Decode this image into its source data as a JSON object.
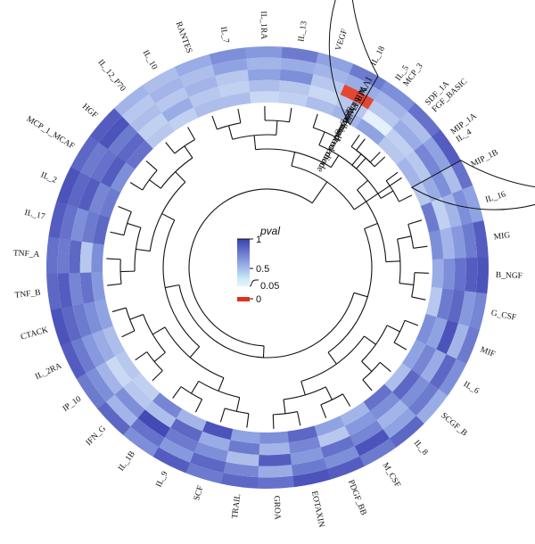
{
  "chart_data": {
    "type": "heatmap",
    "layout": "circular",
    "methods": [
      "IVW",
      "MR Egger",
      "Simple mode",
      "Weighted median",
      "Weighted mode"
    ],
    "cytokines": [
      "IL_5",
      "SDF_1A",
      "MIP_1A",
      "MIP_1B",
      "IL_16",
      "MIG",
      "B_NGF",
      "G_CSF",
      "MIF",
      "IL_6",
      "SCGF_B",
      "IL_8",
      "M_CSF",
      "PDGF_BB",
      "EOTAXIN",
      "GROA",
      "TRAIL",
      "SCF",
      "IL_9",
      "IL_1B",
      "IFN_G",
      "IP_10",
      "IL_2RA",
      "CTACK",
      "TNF_B",
      "TNF_A",
      "IL_17",
      "IL_2",
      "MCP_1_MCAF",
      "HGF",
      "IL_12_P70",
      "IL_10",
      "RANTES",
      "IL_7",
      "IL_1RA",
      "IL_13",
      "VEGF",
      "IL_18",
      "MCP_3",
      "FGF_BASIC",
      "IL_4"
    ],
    "pvals": [
      [
        0.7,
        0.3,
        0.5,
        0.6,
        0.4
      ],
      [
        0.8,
        0.25,
        0.7,
        0.5,
        0.6
      ],
      [
        0.6,
        0.4,
        0.3,
        0.7,
        0.5
      ],
      [
        0.75,
        0.35,
        0.6,
        0.45,
        0.3
      ],
      [
        0.5,
        0.6,
        0.4,
        0.25,
        0.7
      ],
      [
        0.85,
        0.7,
        0.55,
        0.4,
        0.6
      ],
      [
        0.9,
        0.85,
        0.75,
        0.6,
        0.45
      ],
      [
        0.65,
        0.55,
        0.8,
        0.7,
        0.3
      ],
      [
        0.7,
        0.4,
        0.9,
        0.5,
        0.6
      ],
      [
        0.6,
        0.8,
        0.45,
        0.65,
        0.5
      ],
      [
        0.45,
        0.7,
        0.6,
        0.8,
        0.35
      ],
      [
        0.8,
        0.5,
        0.4,
        0.6,
        0.75
      ],
      [
        0.7,
        0.9,
        0.65,
        0.55,
        0.4
      ],
      [
        0.85,
        0.6,
        0.75,
        0.3,
        0.5
      ],
      [
        0.9,
        0.7,
        0.55,
        0.65,
        0.8
      ],
      [
        0.75,
        0.45,
        0.85,
        0.4,
        0.6
      ],
      [
        0.8,
        0.65,
        0.35,
        0.7,
        0.5
      ],
      [
        0.7,
        0.8,
        0.6,
        0.45,
        0.9
      ],
      [
        0.85,
        0.55,
        0.7,
        0.8,
        0.4
      ],
      [
        0.6,
        0.75,
        0.95,
        0.35,
        0.65
      ],
      [
        0.8,
        0.4,
        0.6,
        0.3,
        0.25
      ],
      [
        0.7,
        0.6,
        0.4,
        0.2,
        0.3
      ],
      [
        0.85,
        0.7,
        0.55,
        0.45,
        0.35
      ],
      [
        0.9,
        0.8,
        0.7,
        0.6,
        0.5
      ],
      [
        0.8,
        0.85,
        0.65,
        0.75,
        0.55
      ],
      [
        0.75,
        0.7,
        0.8,
        0.3,
        0.6
      ],
      [
        0.85,
        0.75,
        0.6,
        0.7,
        0.8
      ],
      [
        0.9,
        0.8,
        0.85,
        0.65,
        0.7
      ],
      [
        0.8,
        0.7,
        0.75,
        0.85,
        0.6
      ],
      [
        0.85,
        0.9,
        0.7,
        0.8,
        0.75
      ],
      [
        0.4,
        0.3,
        0.35,
        0.25,
        0.3
      ],
      [
        0.35,
        0.4,
        0.3,
        0.45,
        0.25
      ],
      [
        0.45,
        0.35,
        0.4,
        0.3,
        0.35
      ],
      [
        0.6,
        0.5,
        0.3,
        0.25,
        0.35
      ],
      [
        0.55,
        0.4,
        0.5,
        0.35,
        0.2
      ],
      [
        0.7,
        0.45,
        0.6,
        0.3,
        0.25
      ],
      [
        0.5,
        0.4,
        0.3,
        0.2,
        0.35
      ],
      [
        0.7,
        0.45,
        0.01,
        0.3,
        0.4
      ],
      [
        0.6,
        0.4,
        0.3,
        0.07,
        0.5
      ],
      [
        0.75,
        0.35,
        0.45,
        0.25,
        0.3
      ],
      [
        0.85,
        0.5,
        0.65,
        0.3,
        0.4
      ]
    ],
    "legend": {
      "title": "pval",
      "ticks": [
        "1",
        "0.5",
        "0.05",
        "0"
      ],
      "colors": {
        "high": "#3b3fb0",
        "mid": "#8fa3e3",
        "low": "#e8f4fb",
        "sig": "#e0301e"
      }
    },
    "dendrogram": true,
    "grid": false
  }
}
